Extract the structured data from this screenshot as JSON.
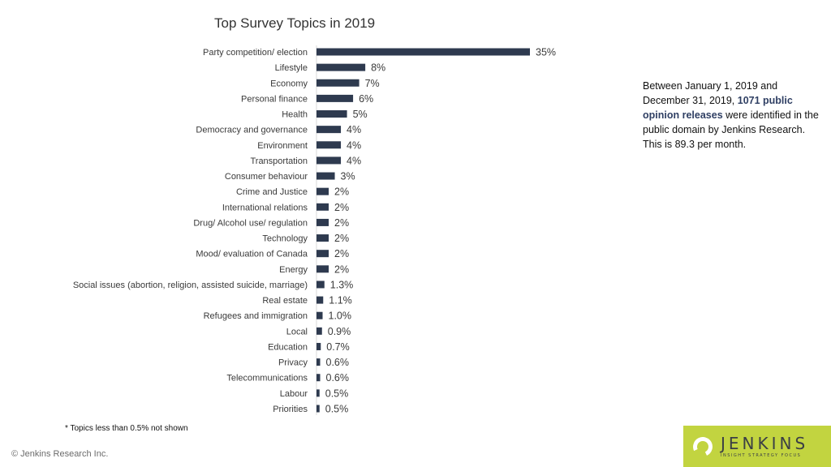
{
  "chart_data": {
    "type": "bar",
    "orientation": "horizontal",
    "title": "Top Survey Topics in 2019",
    "categories": [
      "Party competition/ election",
      "Lifestyle",
      "Economy",
      "Personal finance",
      "Health",
      "Democracy and governance",
      "Environment",
      "Transportation",
      "Consumer behaviour",
      "Crime and Justice",
      "International relations",
      "Drug/ Alcohol use/ regulation",
      "Technology",
      "Mood/ evaluation of Canada",
      "Energy",
      "Social issues (abortion, religion, assisted suicide, marriage)",
      "Real estate",
      "Refugees and immigration",
      "Local",
      "Education",
      "Privacy",
      "Telecommunications",
      "Labour",
      "Priorities"
    ],
    "values": [
      35,
      8,
      7,
      6,
      5,
      4,
      4,
      4,
      3,
      2,
      2,
      2,
      2,
      2,
      2,
      1.3,
      1.1,
      1.0,
      0.9,
      0.7,
      0.6,
      0.6,
      0.5,
      0.5
    ],
    "value_labels": [
      "35%",
      "8%",
      "7%",
      "6%",
      "5%",
      "4%",
      "4%",
      "4%",
      "3%",
      "2%",
      "2%",
      "2%",
      "2%",
      "2%",
      "2%",
      "1.3%",
      "1.1%",
      "1.0%",
      "0.9%",
      "0.7%",
      "0.6%",
      "0.6%",
      "0.5%",
      "0.5%"
    ],
    "unit": "%",
    "bar_color": "#2e3a4f",
    "grid": false,
    "legend": "none"
  },
  "side_note": {
    "part1": "Between January 1, 2019 and December 31, 2019, ",
    "highlight": "1071 public opinion releases",
    "part2": " were identified in the public domain by Jenkins Research. This is 89.3 per month.",
    "highlight_color": "#2f3f63"
  },
  "footnote": "* Topics less than 0.5% not shown",
  "copyright": "© Jenkins Research Inc.",
  "logo": {
    "name": "JENKINS",
    "tagline": "INSIGHT  STRATEGY  FOCUS",
    "color": "#c2d440"
  }
}
